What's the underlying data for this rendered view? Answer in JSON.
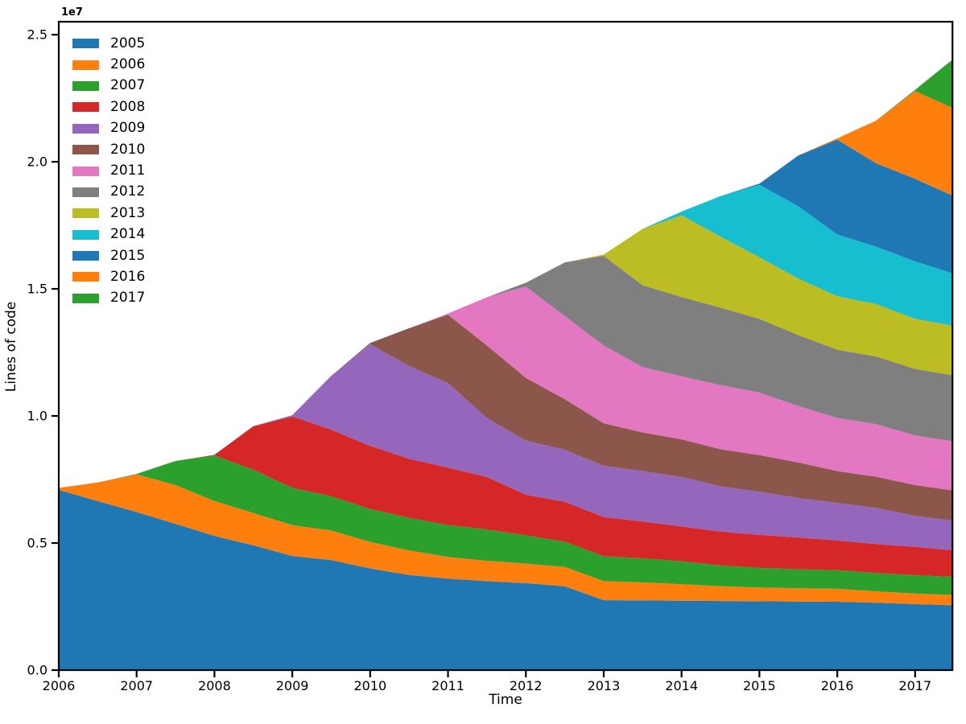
{
  "chart_data": {
    "type": "area",
    "stacked": true,
    "title": "",
    "xlabel": "Time",
    "ylabel": "Lines of code",
    "y_offset_text": "1e7",
    "legend_position": "upper left",
    "grid": false,
    "background_color": "#ffffff",
    "axis_color": "#000000",
    "xlim": [
      2006.0,
      2017.48
    ],
    "ylim": [
      0,
      25510000
    ],
    "x_ticks": [
      2006,
      2007,
      2008,
      2009,
      2010,
      2011,
      2012,
      2013,
      2014,
      2015,
      2016,
      2017
    ],
    "x_tick_labels": [
      "2006",
      "2007",
      "2008",
      "2009",
      "2010",
      "2011",
      "2012",
      "2013",
      "2014",
      "2015",
      "2016",
      "2017"
    ],
    "y_ticks": [
      0,
      5000000,
      10000000,
      15000000,
      20000000,
      25000000
    ],
    "y_tick_labels": [
      "0.0",
      "0.5",
      "1.0",
      "1.5",
      "2.0",
      "2.5"
    ],
    "x": [
      2006.0,
      2006.5,
      2007.0,
      2007.5,
      2008.0,
      2008.5,
      2009.0,
      2009.5,
      2010.0,
      2010.5,
      2011.0,
      2011.5,
      2012.0,
      2012.5,
      2013.0,
      2013.5,
      2014.0,
      2014.5,
      2015.0,
      2015.5,
      2016.0,
      2016.5,
      2017.0,
      2017.48
    ],
    "series": [
      {
        "name": "2005",
        "color": "#1f77b4",
        "values": [
          7090000,
          6650000,
          6220000,
          5750000,
          5280000,
          4910000,
          4490000,
          4330000,
          4000000,
          3740000,
          3600000,
          3500000,
          3420000,
          3300000,
          2750000,
          2740000,
          2730000,
          2720000,
          2710000,
          2700000,
          2690000,
          2650000,
          2600000,
          2550000
        ]
      },
      {
        "name": "2006",
        "color": "#ff7f0e",
        "values": [
          80000,
          730000,
          1480000,
          1530000,
          1370000,
          1270000,
          1210000,
          1160000,
          1040000,
          970000,
          850000,
          800000,
          770000,
          760000,
          750000,
          710000,
          650000,
          580000,
          540000,
          520000,
          510000,
          450000,
          410000,
          410000
        ]
      },
      {
        "name": "2007",
        "color": "#2ca02c",
        "values": [
          0,
          0,
          20000,
          950000,
          1790000,
          1700000,
          1470000,
          1350000,
          1300000,
          1280000,
          1260000,
          1230000,
          1110000,
          990000,
          980000,
          950000,
          900000,
          820000,
          770000,
          750000,
          730000,
          720000,
          720000,
          710000
        ]
      },
      {
        "name": "2008",
        "color": "#d62728",
        "values": [
          0,
          0,
          0,
          0,
          30000,
          1720000,
          2810000,
          2620000,
          2480000,
          2320000,
          2260000,
          2070000,
          1600000,
          1570000,
          1540000,
          1450000,
          1370000,
          1330000,
          1300000,
          1250000,
          1170000,
          1140000,
          1120000,
          1050000
        ]
      },
      {
        "name": "2009",
        "color": "#9467bd",
        "values": [
          0,
          0,
          0,
          0,
          0,
          0,
          50000,
          2120000,
          4000000,
          3650000,
          3320000,
          2320000,
          2130000,
          2050000,
          2020000,
          1980000,
          1950000,
          1780000,
          1700000,
          1550000,
          1480000,
          1420000,
          1220000,
          1160000
        ]
      },
      {
        "name": "2010",
        "color": "#8c564b",
        "values": [
          0,
          0,
          0,
          0,
          0,
          0,
          0,
          0,
          50000,
          1490000,
          2690000,
          2850000,
          2470000,
          1990000,
          1670000,
          1520000,
          1480000,
          1460000,
          1440000,
          1400000,
          1250000,
          1230000,
          1210000,
          1190000
        ]
      },
      {
        "name": "2011",
        "color": "#e377c2",
        "values": [
          0,
          0,
          0,
          0,
          0,
          0,
          0,
          0,
          0,
          0,
          50000,
          1900000,
          3590000,
          3270000,
          3060000,
          2570000,
          2480000,
          2520000,
          2460000,
          2220000,
          2090000,
          2070000,
          1950000,
          1930000
        ]
      },
      {
        "name": "2012",
        "color": "#7f7f7f",
        "values": [
          0,
          0,
          0,
          0,
          0,
          0,
          0,
          0,
          0,
          0,
          0,
          0,
          150000,
          2110000,
          3530000,
          3220000,
          3120000,
          3050000,
          2900000,
          2790000,
          2690000,
          2660000,
          2620000,
          2600000
        ]
      },
      {
        "name": "2013",
        "color": "#bcbd22",
        "values": [
          0,
          0,
          0,
          0,
          0,
          0,
          0,
          0,
          0,
          0,
          0,
          0,
          0,
          0,
          50000,
          2220000,
          3210000,
          2790000,
          2420000,
          2220000,
          2100000,
          2060000,
          1970000,
          1950000
        ]
      },
      {
        "name": "2014",
        "color": "#17becf",
        "values": [
          0,
          0,
          0,
          0,
          0,
          0,
          0,
          0,
          0,
          0,
          0,
          0,
          0,
          0,
          0,
          0,
          150000,
          1600000,
          2850000,
          2850000,
          2430000,
          2260000,
          2260000,
          2060000
        ]
      },
      {
        "name": "2015",
        "color": "#1f77b4",
        "values": [
          0,
          0,
          0,
          0,
          0,
          0,
          0,
          0,
          0,
          0,
          0,
          0,
          0,
          0,
          0,
          0,
          0,
          0,
          50000,
          2000000,
          3730000,
          3280000,
          3250000,
          3060000
        ]
      },
      {
        "name": "2016",
        "color": "#ff7f0e",
        "values": [
          0,
          0,
          0,
          0,
          0,
          0,
          0,
          0,
          0,
          0,
          0,
          0,
          0,
          0,
          0,
          0,
          0,
          0,
          0,
          0,
          50000,
          1680000,
          3450000,
          3450000
        ]
      },
      {
        "name": "2017",
        "color": "#2ca02c",
        "values": [
          0,
          0,
          0,
          0,
          0,
          0,
          0,
          0,
          0,
          0,
          0,
          0,
          0,
          0,
          0,
          0,
          0,
          0,
          0,
          0,
          0,
          0,
          50000,
          1900000
        ]
      }
    ],
    "legend_entries": [
      "2005",
      "2006",
      "2007",
      "2008",
      "2009",
      "2010",
      "2011",
      "2012",
      "2013",
      "2014",
      "2015",
      "2016",
      "2017"
    ]
  }
}
